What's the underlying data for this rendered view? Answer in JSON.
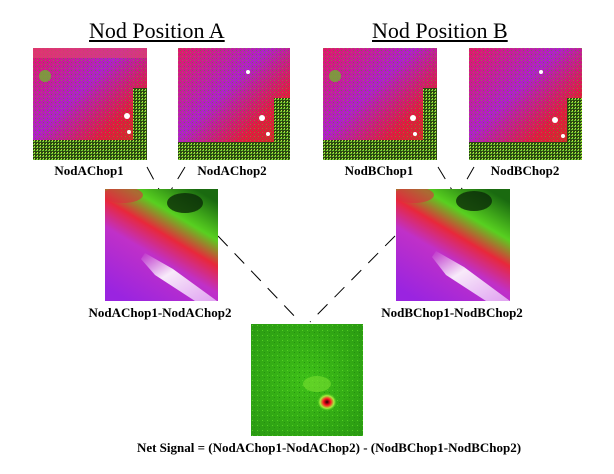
{
  "headings": {
    "nod_a": "Nod Position A",
    "nod_b": "Nod Position B"
  },
  "frames": {
    "nod_a_chop1": "NodAChop1",
    "nod_a_chop2": "NodAChop2",
    "nod_b_chop1": "NodBChop1",
    "nod_b_chop2": "NodBChop2",
    "diff_a": "NodAChop1-NodAChop2",
    "diff_b": "NodBChop1-NodBChop2"
  },
  "net_signal": "Net Signal = (NodAChop1-NodAChop2) - (NodBChop1-NodBChop2)"
}
